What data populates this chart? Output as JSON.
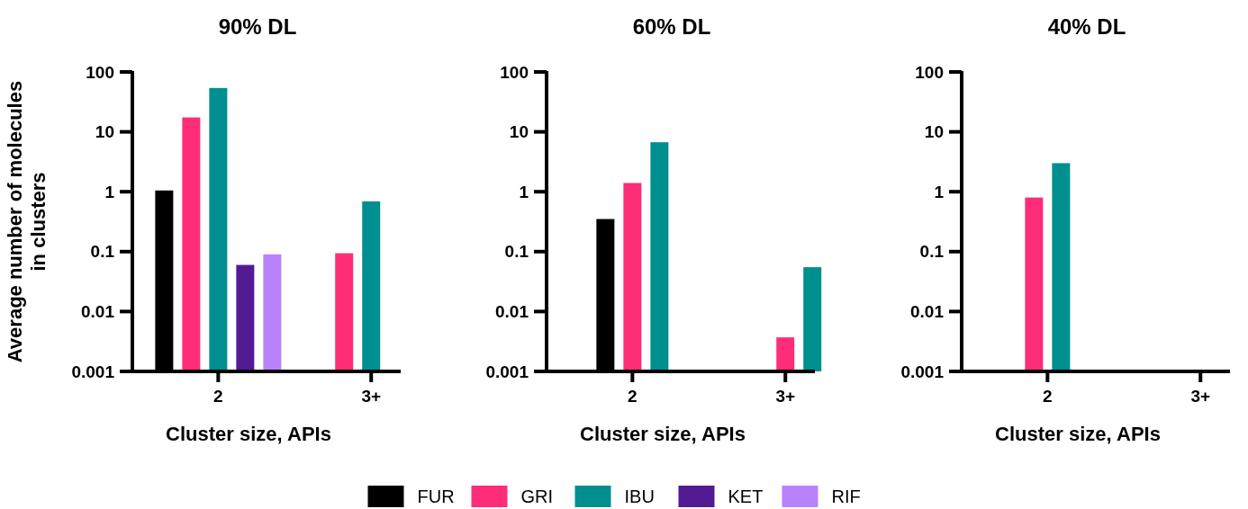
{
  "chart_data": [
    {
      "type": "bar",
      "title": "90% DL",
      "xlabel": "Cluster size, APIs",
      "ylabel": "Average number of molecules in clusters",
      "categories": [
        "2",
        "3+"
      ],
      "log": true,
      "ylim": [
        0.001,
        100
      ],
      "yticks": [
        0.001,
        0.01,
        0.1,
        1,
        10,
        100
      ],
      "grid": false,
      "legend": "bottom",
      "series": [
        {
          "name": "FUR",
          "color": "#000000",
          "values": [
            1.05,
            null
          ]
        },
        {
          "name": "GRI",
          "color": "#ff2d78",
          "values": [
            17.4,
            0.094
          ]
        },
        {
          "name": "IBU",
          "color": "#008f8f",
          "values": [
            54,
            0.69
          ]
        },
        {
          "name": "KET",
          "color": "#521b92",
          "values": [
            0.06,
            null
          ]
        },
        {
          "name": "RIF",
          "color": "#b882fd",
          "values": [
            0.09,
            null
          ]
        }
      ]
    },
    {
      "type": "bar",
      "title": "60% DL",
      "xlabel": "Cluster size, APIs",
      "categories": [
        "2",
        "3+"
      ],
      "log": true,
      "ylim": [
        0.001,
        100
      ],
      "yticks": [
        0.001,
        0.01,
        0.1,
        1,
        10,
        100
      ],
      "grid": false,
      "legend": "bottom",
      "series": [
        {
          "name": "FUR",
          "color": "#000000",
          "values": [
            0.35,
            null
          ]
        },
        {
          "name": "GRI",
          "color": "#ff2d78",
          "values": [
            1.4,
            0.0037
          ]
        },
        {
          "name": "IBU",
          "color": "#008f8f",
          "values": [
            6.7,
            0.055
          ]
        }
      ]
    },
    {
      "type": "bar",
      "title": "40% DL",
      "xlabel": "Cluster size, APIs",
      "categories": [
        "2",
        "3+"
      ],
      "log": true,
      "ylim": [
        0.001,
        100
      ],
      "yticks": [
        0.001,
        0.01,
        0.1,
        1,
        10,
        100
      ],
      "grid": false,
      "legend": "bottom",
      "series": [
        {
          "name": "GRI",
          "color": "#ff2d78",
          "values": [
            0.8,
            null
          ]
        },
        {
          "name": "IBU",
          "color": "#008f8f",
          "values": [
            3.0,
            null
          ]
        }
      ]
    }
  ]
}
